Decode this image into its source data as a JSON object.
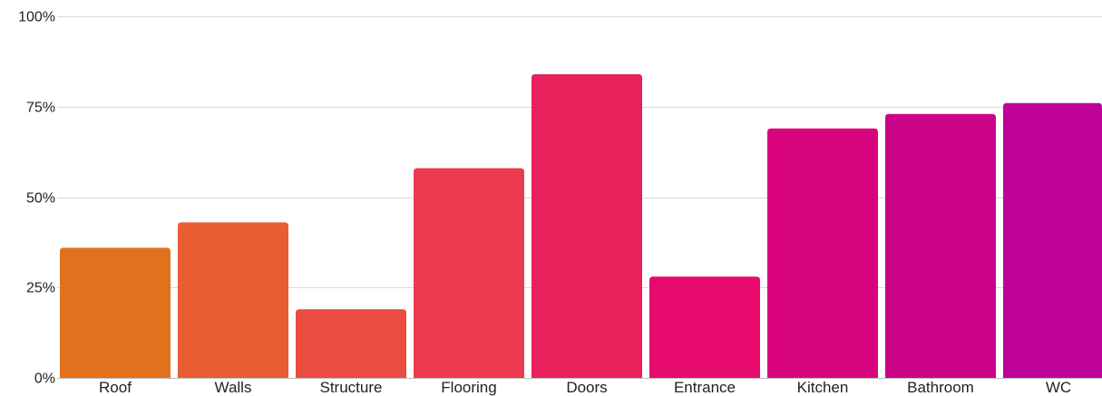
{
  "chart_data": {
    "type": "bar",
    "categories": [
      "Roof",
      "Walls",
      "Structure",
      "Flooring",
      "Doors",
      "Entrance",
      "Kitchen",
      "Bathroom",
      "WC"
    ],
    "values": [
      36,
      43,
      19,
      58,
      84,
      28,
      69,
      73,
      76
    ],
    "colors": [
      "#E2711D",
      "#E85D32",
      "#EA4E41",
      "#EC3A4F",
      "#E8205C",
      "#E60A6C",
      "#D8047E",
      "#CB0389",
      "#BF0399"
    ],
    "ylim": [
      0,
      100
    ],
    "yticks": [
      "0%",
      "25%",
      "50%",
      "75%",
      "100%"
    ],
    "ytick_values": [
      0,
      25,
      50,
      75,
      100
    ],
    "grid": true,
    "title": "",
    "xlabel": "",
    "ylabel": ""
  }
}
